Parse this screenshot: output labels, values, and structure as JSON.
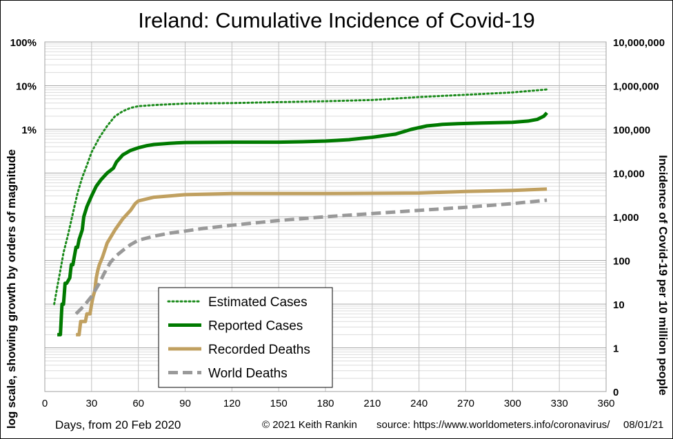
{
  "chart_data": {
    "type": "line",
    "title": "Ireland: Cumulative Incidence of Covid-19",
    "xlabel": "Days, from 20 Feb 2020",
    "ylabel_left": "log scale, showing growth by orders of magnitude",
    "ylabel_right": "Incidence of Covid-19 per 10 million people",
    "x_range": [
      0,
      360
    ],
    "x_ticks": [
      "0",
      "30",
      "60",
      "90",
      "120",
      "150",
      "180",
      "210",
      "240",
      "270",
      "300",
      "330",
      "360"
    ],
    "y_scale": "log",
    "y_range": [
      0.1,
      10000000
    ],
    "y_ticks_right": [
      "0",
      "1",
      "10",
      "100",
      "1,000",
      "10,000",
      "100,000",
      "1,000,000",
      "10,000,000"
    ],
    "y_ticks_left": [
      "1%",
      "10%",
      "100%"
    ],
    "grid": true,
    "legend_position": "bottom-left",
    "series": [
      {
        "name": "Estimated Cases",
        "color": "#1a8a1a",
        "style": "dotted",
        "points": [
          [
            6,
            10
          ],
          [
            8,
            25
          ],
          [
            10,
            60
          ],
          [
            12,
            150
          ],
          [
            15,
            400
          ],
          [
            18,
            1200
          ],
          [
            21,
            3500
          ],
          [
            24,
            8000
          ],
          [
            27,
            15000
          ],
          [
            30,
            30000
          ],
          [
            35,
            65000
          ],
          [
            40,
            120000
          ],
          [
            45,
            200000
          ],
          [
            50,
            260000
          ],
          [
            55,
            310000
          ],
          [
            60,
            340000
          ],
          [
            70,
            360000
          ],
          [
            90,
            390000
          ],
          [
            120,
            400000
          ],
          [
            150,
            420000
          ],
          [
            180,
            440000
          ],
          [
            210,
            470000
          ],
          [
            240,
            550000
          ],
          [
            270,
            620000
          ],
          [
            300,
            700000
          ],
          [
            322,
            820000
          ]
        ]
      },
      {
        "name": "Reported Cases",
        "color": "#007a00",
        "style": "solid",
        "points": [
          [
            8,
            2
          ],
          [
            10,
            2
          ],
          [
            11,
            10
          ],
          [
            12,
            10
          ],
          [
            13,
            30
          ],
          [
            14,
            30
          ],
          [
            16,
            40
          ],
          [
            17,
            80
          ],
          [
            18,
            80
          ],
          [
            20,
            200
          ],
          [
            21,
            200
          ],
          [
            22,
            300
          ],
          [
            24,
            500
          ],
          [
            25,
            1000
          ],
          [
            27,
            1700
          ],
          [
            30,
            3000
          ],
          [
            33,
            5000
          ],
          [
            36,
            7000
          ],
          [
            40,
            10000
          ],
          [
            44,
            13000
          ],
          [
            46,
            18000
          ],
          [
            50,
            26000
          ],
          [
            55,
            33000
          ],
          [
            60,
            38000
          ],
          [
            65,
            42000
          ],
          [
            70,
            45000
          ],
          [
            80,
            48000
          ],
          [
            90,
            50000
          ],
          [
            120,
            51000
          ],
          [
            150,
            51000
          ],
          [
            165,
            52000
          ],
          [
            180,
            54000
          ],
          [
            195,
            58000
          ],
          [
            210,
            66000
          ],
          [
            225,
            78000
          ],
          [
            235,
            100000
          ],
          [
            245,
            120000
          ],
          [
            255,
            130000
          ],
          [
            265,
            135000
          ],
          [
            280,
            140000
          ],
          [
            300,
            145000
          ],
          [
            310,
            155000
          ],
          [
            316,
            170000
          ],
          [
            320,
            200000
          ],
          [
            322,
            240000
          ]
        ]
      },
      {
        "name": "Recorded Deaths",
        "color": "#c0a060",
        "style": "solid",
        "points": [
          [
            20,
            2
          ],
          [
            22,
            2
          ],
          [
            23,
            4
          ],
          [
            26,
            4
          ],
          [
            27,
            6
          ],
          [
            29,
            6
          ],
          [
            30,
            10
          ],
          [
            31,
            15
          ],
          [
            32,
            20
          ],
          [
            33,
            40
          ],
          [
            34,
            60
          ],
          [
            35,
            80
          ],
          [
            37,
            120
          ],
          [
            40,
            250
          ],
          [
            45,
            500
          ],
          [
            50,
            900
          ],
          [
            55,
            1400
          ],
          [
            58,
            2000
          ],
          [
            60,
            2300
          ],
          [
            70,
            2800
          ],
          [
            80,
            3000
          ],
          [
            90,
            3200
          ],
          [
            120,
            3400
          ],
          [
            180,
            3400
          ],
          [
            240,
            3500
          ],
          [
            270,
            3800
          ],
          [
            300,
            4000
          ],
          [
            322,
            4300
          ]
        ]
      },
      {
        "name": "World Deaths",
        "color": "#999999",
        "style": "dashed",
        "points": [
          [
            20,
            6
          ],
          [
            25,
            9
          ],
          [
            30,
            15
          ],
          [
            35,
            30
          ],
          [
            38,
            50
          ],
          [
            42,
            90
          ],
          [
            46,
            130
          ],
          [
            50,
            170
          ],
          [
            55,
            230
          ],
          [
            60,
            290
          ],
          [
            70,
            360
          ],
          [
            80,
            420
          ],
          [
            90,
            470
          ],
          [
            100,
            530
          ],
          [
            120,
            640
          ],
          [
            150,
            820
          ],
          [
            180,
            1000
          ],
          [
            210,
            1180
          ],
          [
            240,
            1400
          ],
          [
            270,
            1650
          ],
          [
            300,
            2000
          ],
          [
            322,
            2400
          ]
        ]
      }
    ]
  },
  "footer": {
    "copyright": "© 2021  Keith  Rankin",
    "source": "source:  https://www.worldometers.info/coronavirus/",
    "date": "08/01/21"
  }
}
